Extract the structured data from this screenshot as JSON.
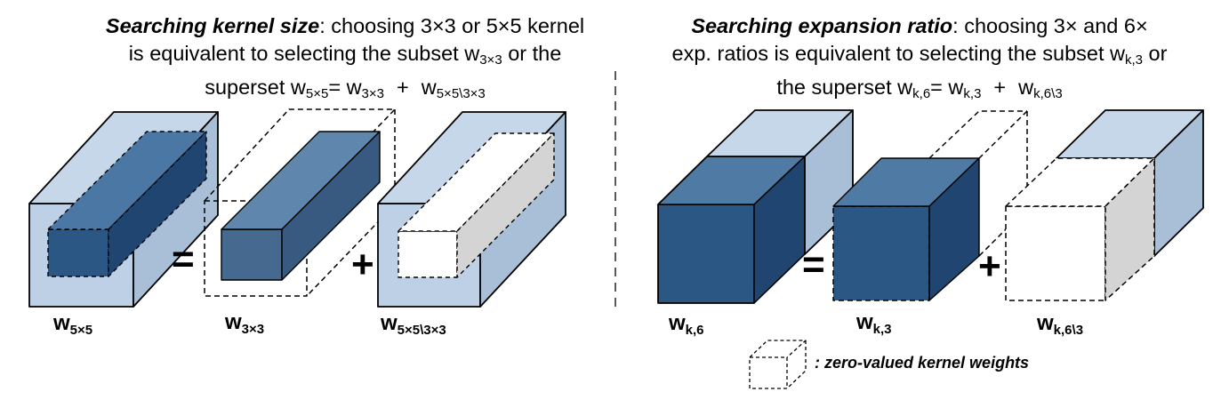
{
  "left_panel": {
    "title_emphasis": "Searching kernel size",
    "title_line1_rest": ": choosing 3×3 or 5×5 kernel",
    "title_line2_pre": "is equivalent to selecting the subset w",
    "title_line2_sub": "3×3",
    "title_line2_post": " or the",
    "title_line3_pre": "superset w",
    "title_line3_sub1": "5×5",
    "title_line3_mid": "= w",
    "title_line3_sub2": "3×3",
    "title_line3_plus": "+",
    "title_line3_w": "w",
    "title_line3_sub3": "5×5\\3×3",
    "label1_base": "w",
    "label1_sub": "5×5",
    "label2_base": "w",
    "label2_sub": "3×3",
    "label3_base": "w",
    "label3_sub": "5×5\\3×3",
    "equals": "=",
    "plus": "+"
  },
  "right_panel": {
    "title_emphasis": "Searching expansion ratio",
    "title_line1_rest": ": choosing 3× and 6×",
    "title_line2_pre": "exp. ratios is equivalent to selecting the subset w",
    "title_line2_sub": "k,3",
    "title_line2_post": " or",
    "title_line3_pre": "the superset w",
    "title_line3_sub1": "k,6",
    "title_line3_mid": "= w",
    "title_line3_sub2": "k,3",
    "title_line3_plus": "+",
    "title_line3_w": "w",
    "title_line3_sub3": "k,6\\3",
    "label1_base": "w",
    "label1_sub": "k,6",
    "label2_base": "w",
    "label2_sub": "k,3",
    "label3_base": "w",
    "label3_sub": "k,6\\3",
    "equals": "=",
    "plus": "+"
  },
  "legend": {
    "text": ": zero-valued kernel weights"
  },
  "colors": {
    "light_blue": "#bdd0e6",
    "light_blue_side": "#a9bfd8",
    "mid_blue": "#4f7aa4",
    "dark_blue": "#2b5784",
    "darker_blue": "#1f4570",
    "gray_face": "#d4d4d4"
  }
}
